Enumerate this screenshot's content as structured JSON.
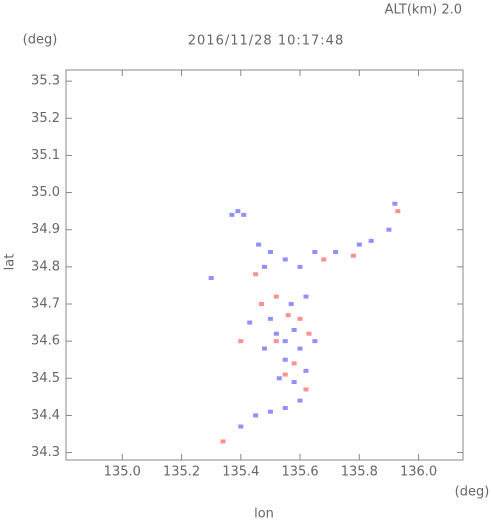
{
  "chart_data": {
    "type": "scatter",
    "title": "2016/11/28 10:17:48",
    "subtitle": "ALT(km) 2.0",
    "y_unit": "(deg)",
    "x_unit": "(deg)",
    "x_label": "lon",
    "y_label": "lat",
    "xlim": [
      134.81,
      136.15
    ],
    "ylim": [
      34.28,
      35.33
    ],
    "xticks": [
      {
        "value": 135,
        "label": "135.0"
      },
      135.2,
      135.4,
      135.6,
      135.8,
      {
        "value": 136,
        "label": "136.0"
      }
    ],
    "yticks": [
      34.3,
      34.4,
      34.5,
      34.6,
      34.7,
      34.8,
      34.9,
      {
        "value": 35,
        "label": "35.0"
      },
      35.1,
      35.2,
      35.3
    ],
    "series": [
      {
        "color": "#7474ff",
        "x": [
          135.39,
          135.41,
          135.37,
          135.46,
          135.5,
          135.48,
          135.55,
          135.6,
          135.65,
          135.72,
          135.8,
          135.84,
          135.9,
          135.92,
          135.5,
          135.52,
          135.55,
          135.58,
          135.6,
          135.55,
          135.53,
          135.58,
          135.62,
          135.43,
          135.57,
          135.62,
          135.45,
          135.5,
          135.55,
          135.6,
          135.4,
          135.65,
          135.48,
          135.3
        ],
        "y": [
          34.95,
          34.94,
          34.94,
          34.86,
          34.84,
          34.8,
          34.82,
          34.8,
          34.84,
          34.84,
          34.86,
          34.87,
          34.9,
          34.97,
          34.66,
          34.62,
          34.6,
          34.63,
          34.58,
          34.55,
          34.5,
          34.49,
          34.52,
          34.65,
          34.7,
          34.72,
          34.4,
          34.41,
          34.42,
          34.44,
          34.37,
          34.6,
          34.58,
          34.77
        ]
      },
      {
        "color": "#ff7474",
        "x": [
          135.34,
          135.52,
          135.56,
          135.6,
          135.47,
          135.63,
          135.58,
          135.55,
          135.62,
          135.45,
          135.68,
          135.78,
          135.93,
          135.4,
          135.52
        ],
        "y": [
          34.33,
          34.72,
          34.67,
          34.66,
          34.7,
          34.62,
          34.54,
          34.51,
          34.47,
          34.78,
          34.82,
          34.83,
          34.95,
          34.6,
          34.6
        ]
      }
    ]
  }
}
